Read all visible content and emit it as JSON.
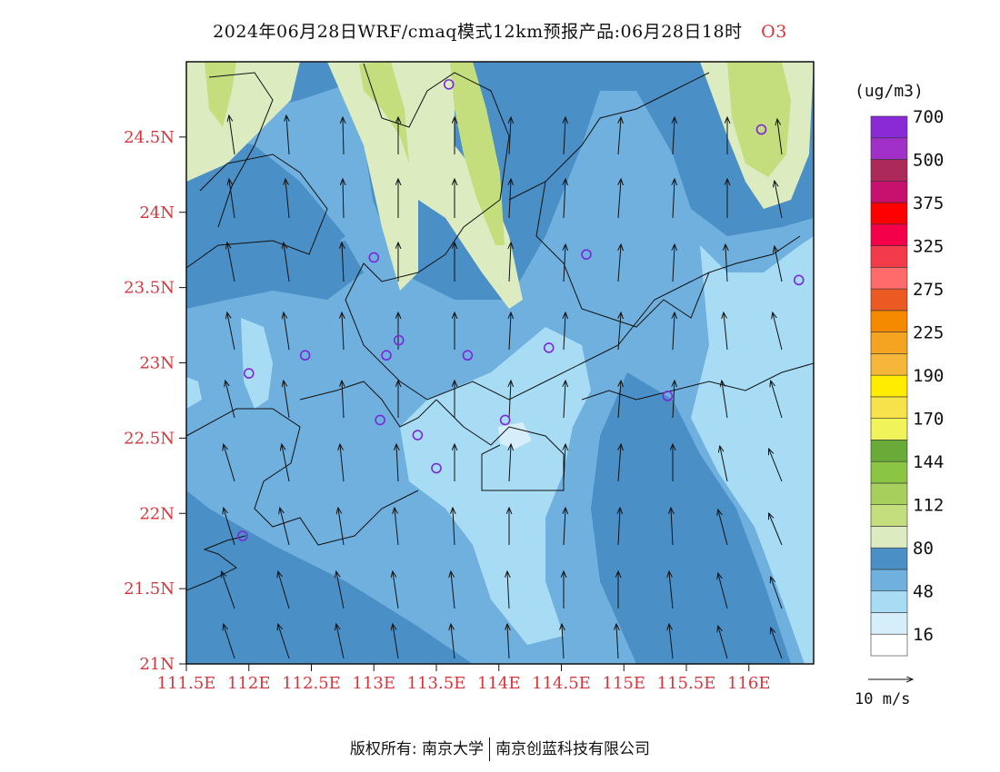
{
  "title": "2024年06月28日WRF/cmaq模式12km预报产品:06月28日18时",
  "pollutant": "O3",
  "unit_label": "(ug/m3)",
  "vector_scale_label": "10 m/s",
  "footer": {
    "left": "版权所有: 南京大学",
    "right": "南京创蓝科技有限公司"
  },
  "axes": {
    "lat_labels": [
      "24.5N",
      "24N",
      "23.5N",
      "23N",
      "22.5N",
      "22N",
      "21.5N",
      "21N"
    ],
    "lon_labels": [
      "111.5E",
      "112E",
      "112.5E",
      "113E",
      "113.5E",
      "114E",
      "114.5E",
      "115E",
      "115.5E",
      "116E"
    ]
  },
  "legend": {
    "colors": [
      "#ffffff",
      "#d6eef9",
      "#a8dcf4",
      "#6fb0de",
      "#4a8fc6",
      "#dcebc0",
      "#c4de7e",
      "#a6cf5c",
      "#8cc544",
      "#6aaa38",
      "#f0f35a",
      "#f6e24a",
      "#ffec00",
      "#f6b63a",
      "#f4a420",
      "#f58a00",
      "#ec5a24",
      "#ff6a6a",
      "#f33a4a",
      "#f4004a",
      "#ff0000",
      "#c8106e",
      "#ac2a5a",
      "#a030c8",
      "#8a2ad6"
    ],
    "labels": [
      "16",
      "48",
      "80",
      "112",
      "144",
      "170",
      "190",
      "225",
      "275",
      "325",
      "375",
      "500",
      "700"
    ]
  },
  "colors": {
    "axis_label": "#d9343a",
    "station_marker": "#7a2ad6"
  },
  "chart_data": {
    "type": "heatmap",
    "variable": "O3",
    "unit": "ug/m3",
    "lon_range": [
      111.5,
      116.5
    ],
    "lat_range": [
      21,
      25
    ],
    "stations": [
      {
        "lon": 113.6,
        "lat": 24.85
      },
      {
        "lon": 116.1,
        "lat": 24.55
      },
      {
        "lon": 113.0,
        "lat": 23.7
      },
      {
        "lon": 114.7,
        "lat": 23.72
      },
      {
        "lon": 116.4,
        "lat": 23.55
      },
      {
        "lon": 113.2,
        "lat": 23.15
      },
      {
        "lon": 112.45,
        "lat": 23.05
      },
      {
        "lon": 113.1,
        "lat": 23.05
      },
      {
        "lon": 113.75,
        "lat": 23.05
      },
      {
        "lon": 114.4,
        "lat": 23.1
      },
      {
        "lon": 112.0,
        "lat": 22.93
      },
      {
        "lon": 115.35,
        "lat": 22.78
      },
      {
        "lon": 113.05,
        "lat": 22.62
      },
      {
        "lon": 113.35,
        "lat": 22.52
      },
      {
        "lon": 114.05,
        "lat": 22.62
      },
      {
        "lon": 113.5,
        "lat": 22.3
      },
      {
        "lon": 111.95,
        "lat": 21.85
      }
    ]
  }
}
